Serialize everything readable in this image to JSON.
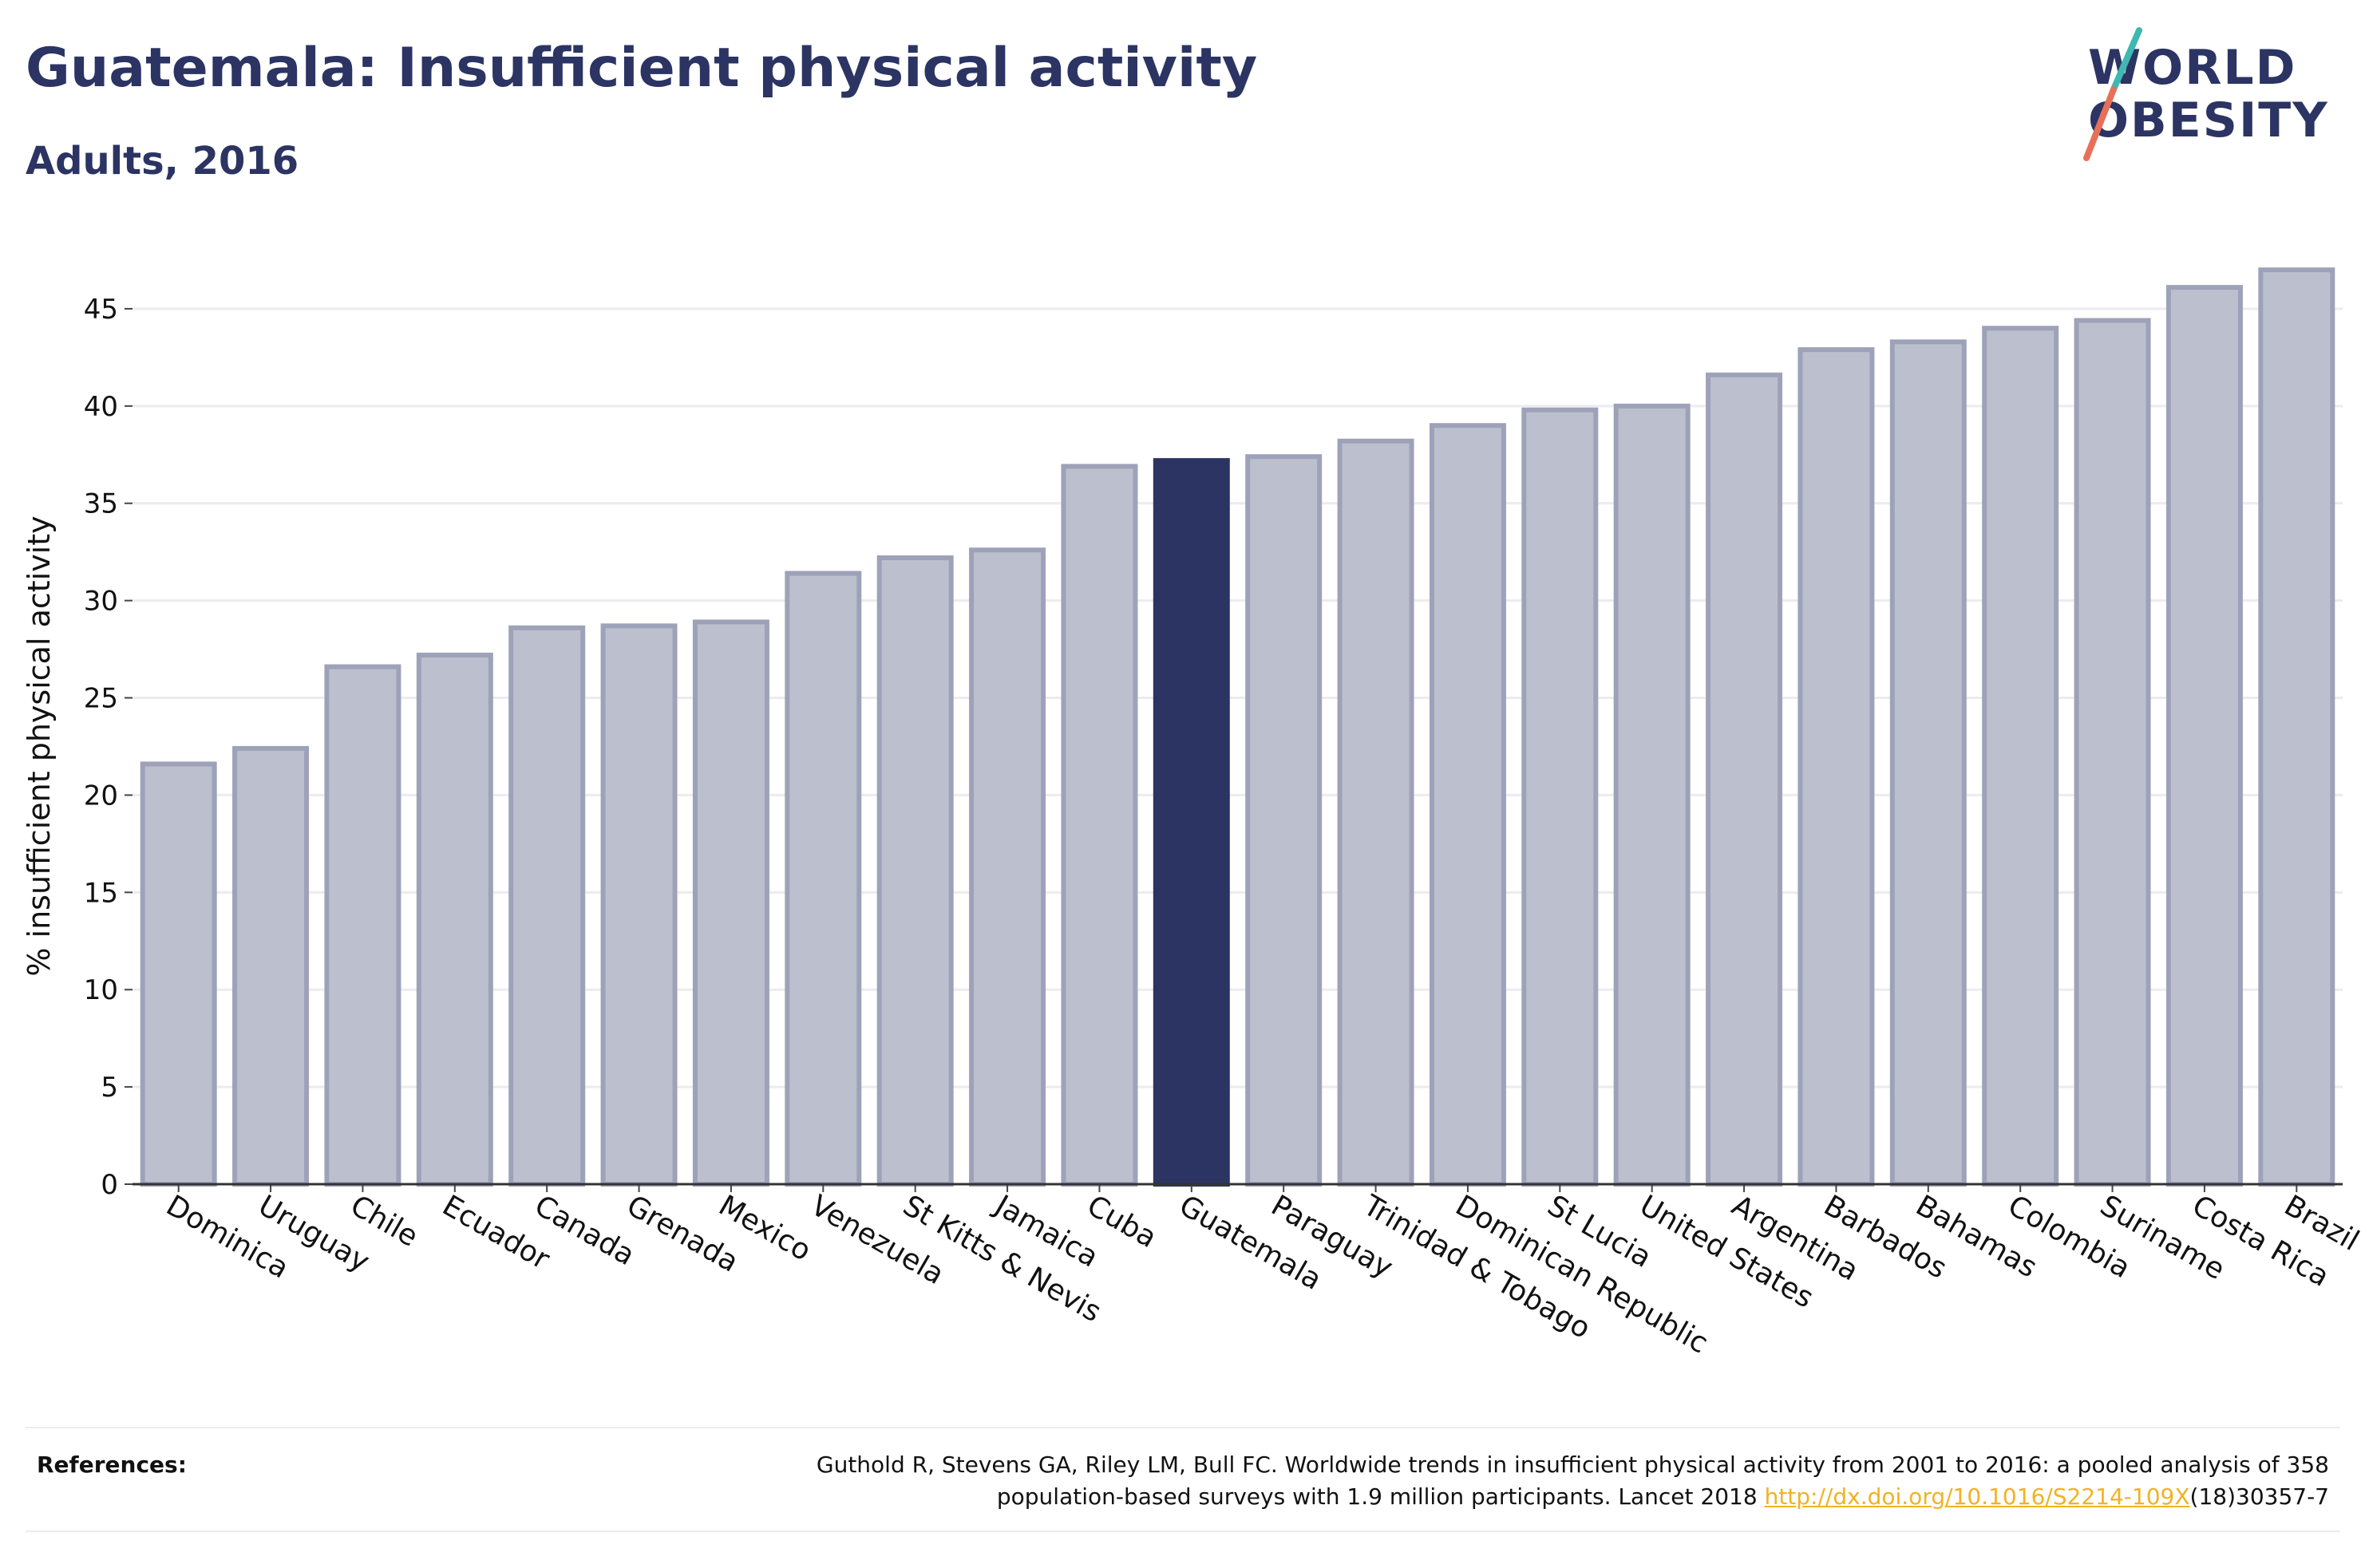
{
  "header": {
    "title": "Guatemala: Insufficient physical activity",
    "subtitle": "Adults, 2016"
  },
  "logo": {
    "line1": "WORLD",
    "line2": "OBESITY",
    "icon": "slash-logo-mark"
  },
  "references": {
    "label": "References:",
    "text_line1": "Guthold R, Stevens GA, Riley LM, Bull FC. Worldwide trends in insufficient physical activity from 2001 to 2016: a pooled analysis of 358",
    "text_line2_prefix": "population-based surveys with 1.9 million participants. Lancet 2018 ",
    "link_text": "http://dx.doi.org/10.1016/S2214-109X",
    "text_line2_suffix": "(18)30357-7"
  },
  "colors": {
    "highlight_bar": "#2b3462",
    "other_bar_fill": "#bcbfcd",
    "other_bar_stroke": "#9ea2b9",
    "title": "#2b3462",
    "link": "#f0b323",
    "logo_slash_top": "#3fb8b1",
    "logo_slash_bottom": "#e8705a"
  },
  "chart_data": {
    "type": "bar",
    "title": "Guatemala: Insufficient physical activity",
    "subtitle": "Adults, 2016",
    "xlabel": "",
    "ylabel": "% insufficient physical activity",
    "ylim": [
      0,
      47.5
    ],
    "yticks": [
      0,
      5,
      10,
      15,
      20,
      25,
      30,
      35,
      40,
      45
    ],
    "grid": true,
    "highlight": "Guatemala",
    "categories": [
      "Dominica",
      "Uruguay",
      "Chile",
      "Ecuador",
      "Canada",
      "Grenada",
      "Mexico",
      "Venezuela",
      "St Kitts & Nevis",
      "Jamaica",
      "Cuba",
      "Guatemala",
      "Paraguay",
      "Trinidad & Tobago",
      "Dominican Republic",
      "St Lucia",
      "United States",
      "Argentina",
      "Barbados",
      "Bahamas",
      "Colombia",
      "Suriname",
      "Costa Rica",
      "Brazil"
    ],
    "values": [
      21.6,
      22.4,
      26.6,
      27.2,
      28.6,
      28.7,
      28.9,
      31.4,
      32.2,
      32.6,
      36.9,
      37.2,
      37.4,
      38.2,
      39.0,
      39.8,
      40.0,
      41.6,
      42.9,
      43.3,
      44.0,
      44.4,
      46.1,
      47.0
    ]
  }
}
